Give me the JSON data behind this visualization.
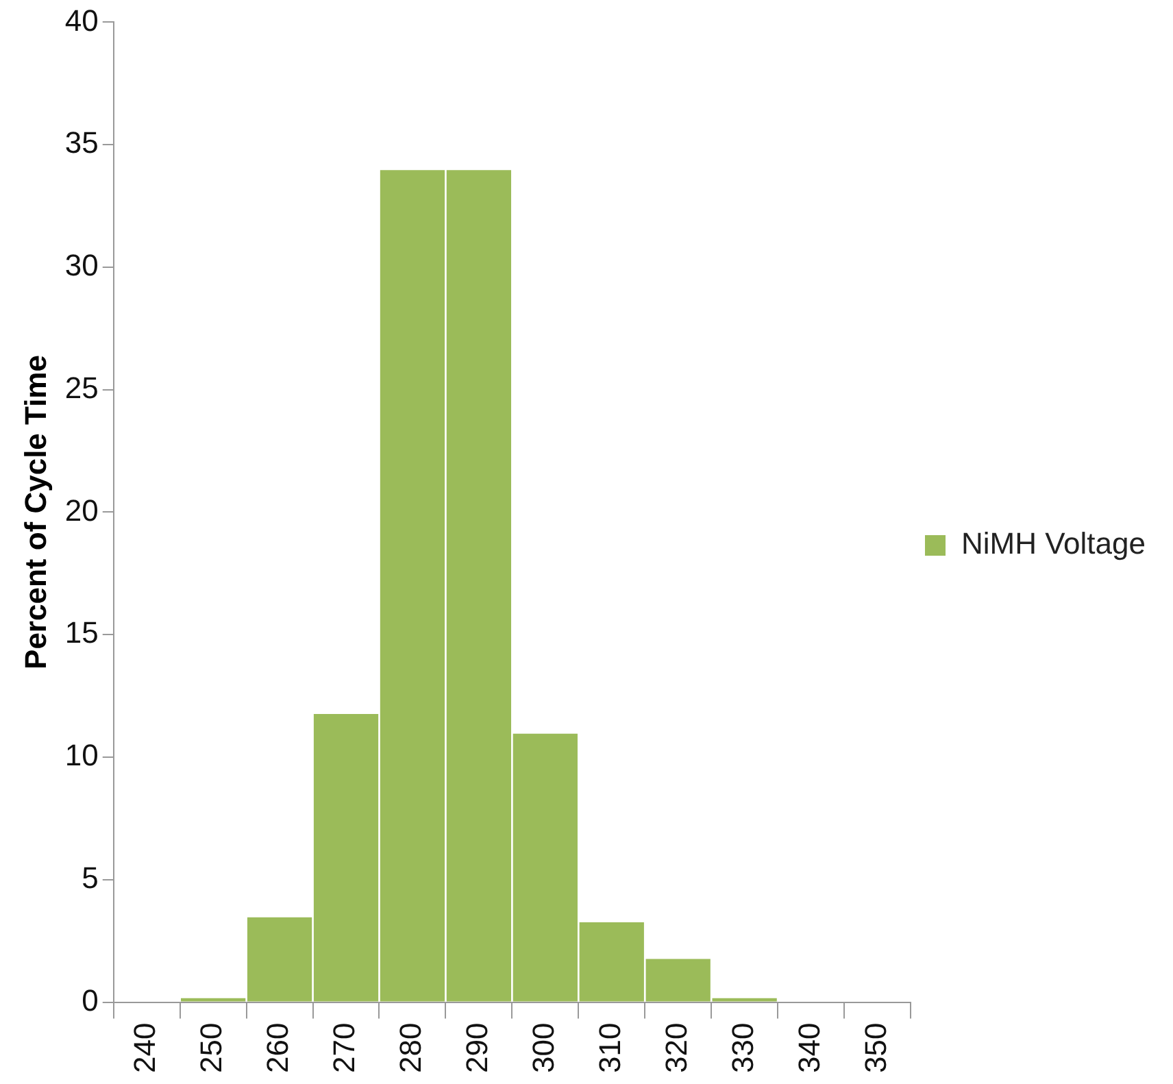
{
  "chart_data": {
    "type": "bar",
    "ylabel": "Percent of Cycle Time",
    "categories": [
      "240",
      "250",
      "260",
      "270",
      "280",
      "290",
      "300",
      "310",
      "320",
      "330",
      "340",
      "350"
    ],
    "series": [
      {
        "name": "NiMH Voltage",
        "color": "#9bbb59",
        "values": [
          0,
          0.2,
          3.5,
          11.8,
          34,
          34,
          11,
          3.3,
          1.8,
          0.2,
          0,
          0
        ]
      }
    ],
    "ylim": [
      0,
      40
    ],
    "yticks": [
      0,
      5,
      10,
      15,
      20,
      25,
      30,
      35,
      40
    ],
    "grid": false,
    "legend": "right"
  }
}
